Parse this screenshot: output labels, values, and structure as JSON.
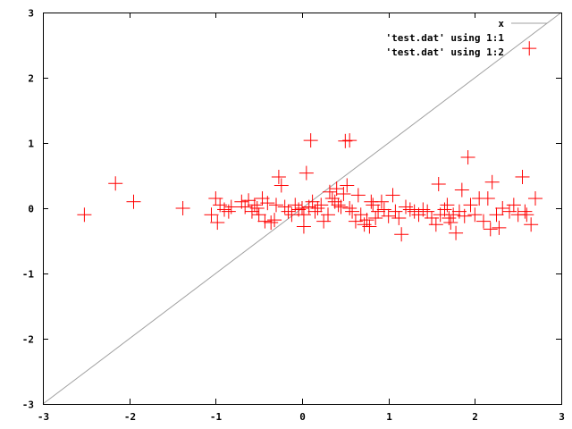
{
  "chart_data": {
    "type": "scatter",
    "title": "",
    "xlabel": "",
    "ylabel": "",
    "xlim": [
      -3,
      3
    ],
    "ylim": [
      -3,
      3
    ],
    "xticks": [
      "-3",
      "-2",
      "-1",
      "0",
      "1",
      "2",
      "3"
    ],
    "yticks": [
      "-3",
      "-2",
      "-1",
      "0",
      "1",
      "2",
      "3"
    ],
    "grid": false,
    "legend_position": "top-right",
    "series": [
      {
        "name": "x",
        "kind": "line",
        "color": "#a0a0a0",
        "x": [
          -3,
          3
        ],
        "y": [
          -3,
          3
        ]
      },
      {
        "name": "'test.dat' using 1:1",
        "kind": "points",
        "color": "#000000",
        "x": [],
        "y": []
      },
      {
        "name": "'test.dat' using 1:2",
        "kind": "points",
        "marker": "cross",
        "color": "#ff0000",
        "points": [
          [
            -2.52,
            -0.1
          ],
          [
            -2.16,
            0.38
          ],
          [
            -1.95,
            0.1
          ],
          [
            -1.38,
            0.0
          ],
          [
            -1.05,
            -0.1
          ],
          [
            -1.0,
            0.15
          ],
          [
            -0.98,
            -0.22
          ],
          [
            -0.95,
            0.05
          ],
          [
            -0.9,
            -0.02
          ],
          [
            -0.85,
            -0.05
          ],
          [
            -0.82,
            0.02
          ],
          [
            -0.7,
            0.1
          ],
          [
            -0.66,
            0.02
          ],
          [
            -0.62,
            0.12
          ],
          [
            -0.58,
            -0.05
          ],
          [
            -0.55,
            0.05
          ],
          [
            -0.52,
            0.0
          ],
          [
            -0.5,
            -0.1
          ],
          [
            -0.46,
            0.15
          ],
          [
            -0.43,
            -0.2
          ],
          [
            -0.4,
            0.08
          ],
          [
            -0.36,
            -0.22
          ],
          [
            -0.32,
            -0.18
          ],
          [
            -0.3,
            0.05
          ],
          [
            -0.27,
            0.48
          ],
          [
            -0.24,
            0.35
          ],
          [
            -0.2,
            0.02
          ],
          [
            -0.16,
            -0.05
          ],
          [
            -0.12,
            -0.1
          ],
          [
            -0.08,
            0.05
          ],
          [
            -0.04,
            -0.02
          ],
          [
            0.0,
            0.0
          ],
          [
            0.02,
            -0.1
          ],
          [
            0.02,
            -0.28
          ],
          [
            0.05,
            0.54
          ],
          [
            0.08,
            0.02
          ],
          [
            0.1,
            1.04
          ],
          [
            0.12,
            0.1
          ],
          [
            0.15,
            -0.05
          ],
          [
            0.18,
            0.0
          ],
          [
            0.22,
            0.05
          ],
          [
            0.25,
            -0.2
          ],
          [
            0.3,
            -0.1
          ],
          [
            0.32,
            0.25
          ],
          [
            0.35,
            0.15
          ],
          [
            0.38,
            0.1
          ],
          [
            0.4,
            0.3
          ],
          [
            0.42,
            0.05
          ],
          [
            0.45,
            0.02
          ],
          [
            0.48,
            0.22
          ],
          [
            0.5,
            1.03
          ],
          [
            0.52,
            0.35
          ],
          [
            0.55,
            1.04
          ],
          [
            0.55,
            0.0
          ],
          [
            0.58,
            -0.05
          ],
          [
            0.62,
            -0.2
          ],
          [
            0.65,
            0.2
          ],
          [
            0.68,
            -0.1
          ],
          [
            0.72,
            -0.25
          ],
          [
            0.75,
            -0.18
          ],
          [
            0.78,
            -0.28
          ],
          [
            0.8,
            0.1
          ],
          [
            0.82,
            0.05
          ],
          [
            0.85,
            -0.15
          ],
          [
            0.88,
            -0.05
          ],
          [
            0.92,
            0.1
          ],
          [
            0.95,
            -0.02
          ],
          [
            1.0,
            -0.12
          ],
          [
            1.05,
            0.2
          ],
          [
            1.08,
            -0.05
          ],
          [
            1.12,
            -0.15
          ],
          [
            1.15,
            -0.4
          ],
          [
            1.2,
            0.02
          ],
          [
            1.25,
            -0.02
          ],
          [
            1.3,
            -0.05
          ],
          [
            1.35,
            -0.1
          ],
          [
            1.4,
            -0.02
          ],
          [
            1.45,
            -0.05
          ],
          [
            1.5,
            -0.15
          ],
          [
            1.55,
            -0.25
          ],
          [
            1.58,
            0.37
          ],
          [
            1.6,
            -0.1
          ],
          [
            1.65,
            -0.02
          ],
          [
            1.68,
            0.05
          ],
          [
            1.7,
            -0.15
          ],
          [
            1.72,
            -0.22
          ],
          [
            1.75,
            -0.1
          ],
          [
            1.78,
            -0.38
          ],
          [
            1.82,
            -0.05
          ],
          [
            1.85,
            0.28
          ],
          [
            1.88,
            -0.12
          ],
          [
            1.92,
            0.78
          ],
          [
            1.95,
            0.05
          ],
          [
            2.0,
            -0.1
          ],
          [
            2.05,
            0.15
          ],
          [
            2.1,
            -0.2
          ],
          [
            2.15,
            0.15
          ],
          [
            2.18,
            -0.32
          ],
          [
            2.2,
            0.4
          ],
          [
            2.25,
            -0.1
          ],
          [
            2.28,
            -0.3
          ],
          [
            2.32,
            0.0
          ],
          [
            2.4,
            -0.05
          ],
          [
            2.45,
            0.05
          ],
          [
            2.5,
            -0.1
          ],
          [
            2.55,
            0.48
          ],
          [
            2.58,
            -0.05
          ],
          [
            2.6,
            -0.1
          ],
          [
            2.63,
            2.45
          ],
          [
            2.65,
            -0.25
          ],
          [
            2.7,
            0.15
          ]
        ]
      }
    ]
  }
}
